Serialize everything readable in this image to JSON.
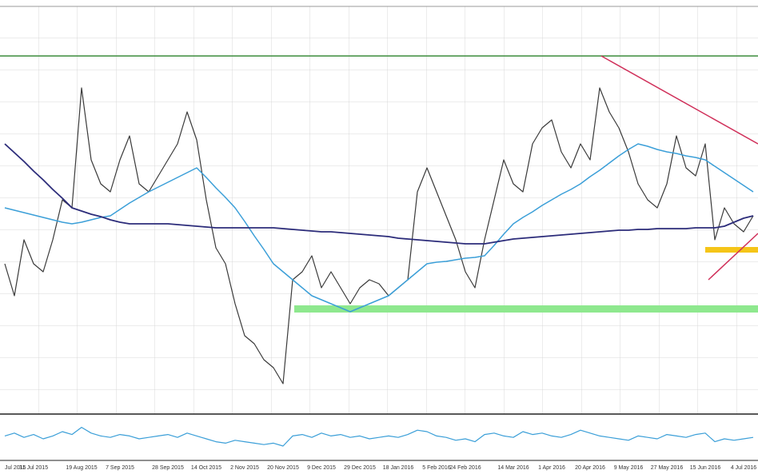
{
  "chart_data": [
    {
      "type": "line",
      "categories": [
        "Jul 2015",
        null,
        null,
        "31 Jul 2015",
        null,
        null,
        null,
        null,
        "19 Aug 2015",
        null,
        null,
        null,
        "7 Sep 2015",
        null,
        null,
        null,
        null,
        "28 Sep 2015",
        null,
        null,
        null,
        "14 Oct 2015",
        null,
        null,
        null,
        "2 Nov 2015",
        null,
        null,
        null,
        "20 Nov 2015",
        null,
        null,
        null,
        "9 Dec 2015",
        null,
        null,
        null,
        "29 Dec 2015",
        null,
        null,
        null,
        "18 Jan 2016",
        null,
        null,
        null,
        "5 Feb 2016",
        null,
        null,
        "24 Feb 2016",
        null,
        null,
        null,
        null,
        "14 Mar 2016",
        null,
        null,
        null,
        "1 Apr 2016",
        null,
        null,
        null,
        "20 Apr 2016",
        null,
        null,
        null,
        "9 May 2016",
        null,
        null,
        null,
        "27 May 2016",
        null,
        null,
        null,
        "15 Jun 2016",
        null,
        null,
        null,
        "4 Jul 2016",
        null
      ],
      "series": [
        {
          "color": "#3a3a3a",
          "width": 1.2,
          "values": [
            188,
            148,
            218,
            188,
            178,
            218,
            268,
            258,
            408,
            318,
            288,
            278,
            318,
            348,
            288,
            278,
            298,
            318,
            338,
            378,
            343,
            268,
            208,
            188,
            138,
            98,
            88,
            68,
            58,
            38,
            168,
            178,
            198,
            158,
            178,
            158,
            138,
            158,
            168,
            163,
            148,
            158,
            168,
            278,
            308,
            278,
            248,
            218,
            178,
            158,
            218,
            268,
            318,
            288,
            278,
            338,
            358,
            368,
            328,
            308,
            338,
            318,
            408,
            378,
            358,
            328,
            288,
            268,
            258,
            288,
            348,
            308,
            298,
            338,
            218,
            258,
            238,
            228,
            248
          ]
        },
        {
          "color": "#3b9fd8",
          "width": 1.5,
          "values": [
            258,
            255,
            252,
            249,
            246,
            243,
            240,
            238,
            240,
            243,
            246,
            248,
            256,
            264,
            271,
            278,
            284,
            290,
            296,
            302,
            308,
            296,
            283,
            271,
            258,
            241,
            223,
            206,
            188,
            178,
            168,
            158,
            148,
            143,
            138,
            133,
            128,
            133,
            138,
            143,
            148,
            158,
            168,
            178,
            188,
            190,
            191,
            193,
            195,
            196,
            198,
            211,
            225,
            238,
            246,
            253,
            261,
            268,
            275,
            281,
            288,
            297,
            305,
            314,
            323,
            331,
            338,
            335,
            331,
            328,
            326,
            323,
            321,
            318,
            310,
            302,
            294,
            286,
            278
          ]
        },
        {
          "color": "#2c2c7a",
          "width": 1.8,
          "values": [
            338,
            327,
            316,
            304,
            293,
            281,
            270,
            258,
            254,
            250,
            247,
            243,
            240,
            238,
            238,
            238,
            238,
            238,
            237,
            236,
            235,
            234,
            233,
            233,
            233,
            233,
            233,
            233,
            233,
            232,
            231,
            230,
            229,
            228,
            228,
            227,
            226,
            225,
            224,
            223,
            222,
            220,
            219,
            218,
            217,
            216,
            215,
            214,
            213,
            213,
            213,
            215,
            217,
            219,
            220,
            221,
            222,
            223,
            224,
            225,
            226,
            227,
            228,
            229,
            230,
            230,
            231,
            231,
            232,
            232,
            232,
            232,
            233,
            233,
            233,
            235,
            240,
            245,
            248
          ]
        }
      ],
      "ylim": [
        0,
        510
      ],
      "grid": true
    },
    {
      "type": "line",
      "series": [
        {
          "color": "#3b9fd8",
          "width": 1.2,
          "values": [
            2,
            4,
            1,
            3,
            0,
            2,
            5,
            3,
            8,
            4,
            2,
            1,
            3,
            2,
            0,
            1,
            2,
            3,
            1,
            4,
            2,
            0,
            -2,
            -3,
            -1,
            -2,
            -3,
            -4,
            -3,
            -5,
            2,
            3,
            1,
            4,
            2,
            3,
            1,
            2,
            0,
            1,
            2,
            1,
            3,
            6,
            5,
            2,
            1,
            -1,
            0,
            -2,
            3,
            4,
            2,
            1,
            5,
            3,
            4,
            2,
            1,
            3,
            6,
            4,
            2,
            1,
            0,
            -1,
            2,
            1,
            0,
            3,
            2,
            1,
            3,
            4,
            -2,
            0,
            -1,
            0,
            1
          ]
        }
      ],
      "ylim": [
        -15,
        15
      ]
    }
  ]
}
